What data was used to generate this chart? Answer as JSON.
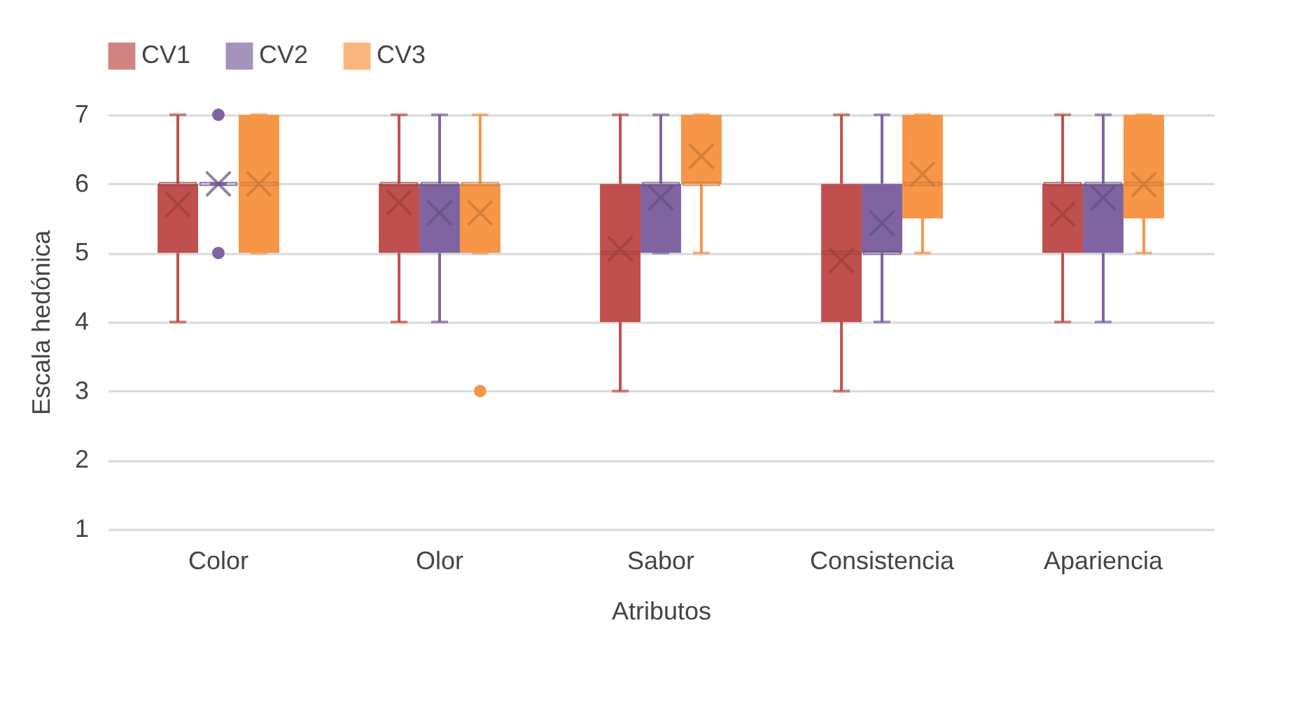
{
  "chart_data": {
    "type": "box",
    "xlabel": "Atributos",
    "ylabel": "Escala hedónica",
    "categories": [
      "Color",
      "Olor",
      "Sabor",
      "Consistencia",
      "Apariencia"
    ],
    "ylim": [
      1,
      7
    ],
    "yticks": [
      1,
      2,
      3,
      4,
      5,
      6,
      7
    ],
    "grid": "y",
    "legend": "top",
    "series": [
      {
        "name": "CV1",
        "color": "#c0504d",
        "boxes": [
          {
            "low": 4,
            "q1": 5,
            "median": 6,
            "q3": 6,
            "high": 7,
            "mean": 5.7
          },
          {
            "low": 4,
            "q1": 5,
            "median": 6,
            "q3": 6,
            "high": 7,
            "mean": 5.73
          },
          {
            "low": 3,
            "q1": 4,
            "median": 5,
            "q3": 6,
            "high": 7,
            "mean": 5.06
          },
          {
            "low": 3,
            "q1": 4,
            "median": 5,
            "q3": 6,
            "high": 7,
            "mean": 4.89
          },
          {
            "low": 4,
            "q1": 5,
            "median": 6,
            "q3": 6,
            "high": 7,
            "mean": 5.56
          }
        ]
      },
      {
        "name": "CV2",
        "color": "#8064a2",
        "boxes": [
          {
            "low": 6,
            "q1": 6,
            "median": 6,
            "q3": 6,
            "high": 6,
            "mean": 6,
            "outliers": [
              5,
              7
            ]
          },
          {
            "low": 4,
            "q1": 5,
            "median": 6,
            "q3": 6,
            "high": 7,
            "mean": 5.58
          },
          {
            "low": 5,
            "q1": 5,
            "median": 6,
            "q3": 6,
            "high": 7,
            "mean": 5.8
          },
          {
            "low": 4,
            "q1": 5,
            "median": 5,
            "q3": 6,
            "high": 7,
            "mean": 5.43
          },
          {
            "low": 4,
            "q1": 5,
            "median": 6,
            "q3": 6,
            "high": 7,
            "mean": 5.8
          }
        ]
      },
      {
        "name": "CV3",
        "color": "#f79646",
        "boxes": [
          {
            "low": 5,
            "q1": 5,
            "median": 6,
            "q3": 7,
            "high": 7,
            "mean": 6
          },
          {
            "low": 5,
            "q1": 5,
            "median": 6,
            "q3": 6,
            "high": 7,
            "mean": 5.58,
            "outliers": [
              3
            ]
          },
          {
            "low": 5,
            "q1": 6,
            "median": 6,
            "q3": 7,
            "high": 7,
            "mean": 6.4
          },
          {
            "low": 5,
            "q1": 5.5,
            "median": 6,
            "q3": 7,
            "high": 7,
            "mean": 6.14
          },
          {
            "low": 5,
            "q1": 5.5,
            "median": 6,
            "q3": 7,
            "high": 7,
            "mean": 5.99
          }
        ]
      }
    ]
  }
}
